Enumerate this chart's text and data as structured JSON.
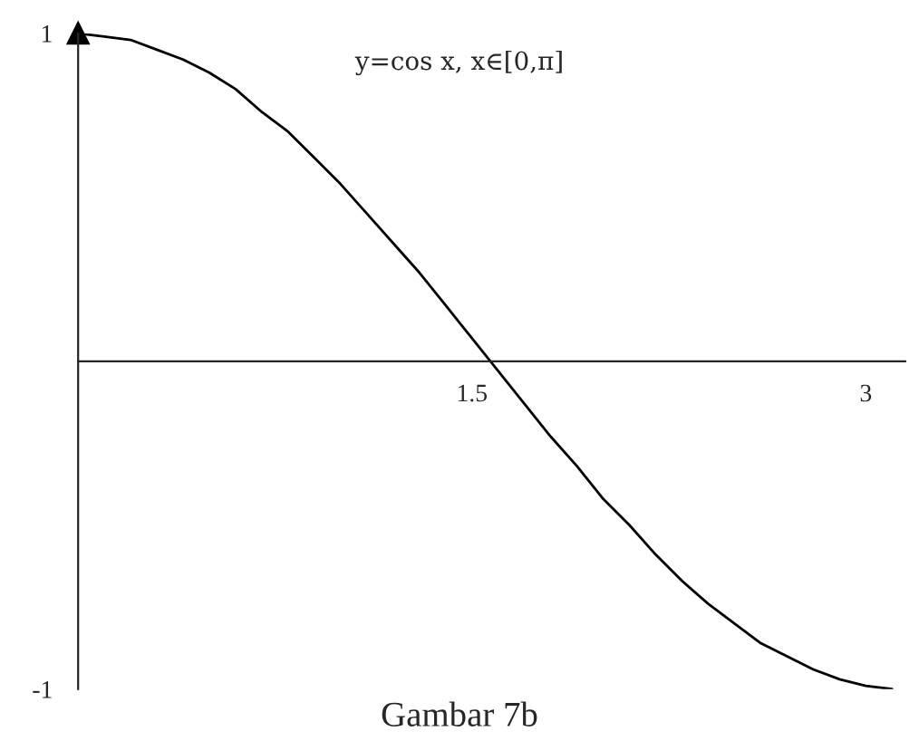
{
  "chart_data": {
    "type": "line",
    "x": [
      0,
      0.1,
      0.2,
      0.3,
      0.4,
      0.5,
      0.6,
      0.7,
      0.8,
      0.9,
      1.0,
      1.1,
      1.2,
      1.3,
      1.4,
      1.5,
      1.6,
      1.7,
      1.8,
      1.9,
      2.0,
      2.1,
      2.2,
      2.3,
      2.4,
      2.5,
      2.6,
      2.7,
      2.8,
      2.9,
      3.0,
      3.1
    ],
    "series": [
      {
        "color": "#000000",
        "values": [
          1.0,
          0.99,
          0.98,
          0.95,
          0.92,
          0.88,
          0.83,
          0.76,
          0.7,
          0.62,
          0.54,
          0.45,
          0.36,
          0.27,
          0.17,
          0.07,
          -0.03,
          -0.13,
          -0.23,
          -0.32,
          -0.42,
          -0.5,
          -0.59,
          -0.67,
          -0.74,
          -0.8,
          -0.86,
          -0.9,
          -0.94,
          -0.97,
          -0.99,
          -1.0
        ]
      }
    ],
    "xlim": [
      0,
      3.15
    ],
    "ylim": [
      -1,
      1
    ],
    "xticks": [
      1.5,
      3
    ],
    "yticks": [
      1,
      -1
    ],
    "grid": false,
    "marker": "none",
    "line_style": "solid",
    "annotations": [
      "y=cos x, x∈[0,π]",
      "Gambar 7b"
    ]
  }
}
